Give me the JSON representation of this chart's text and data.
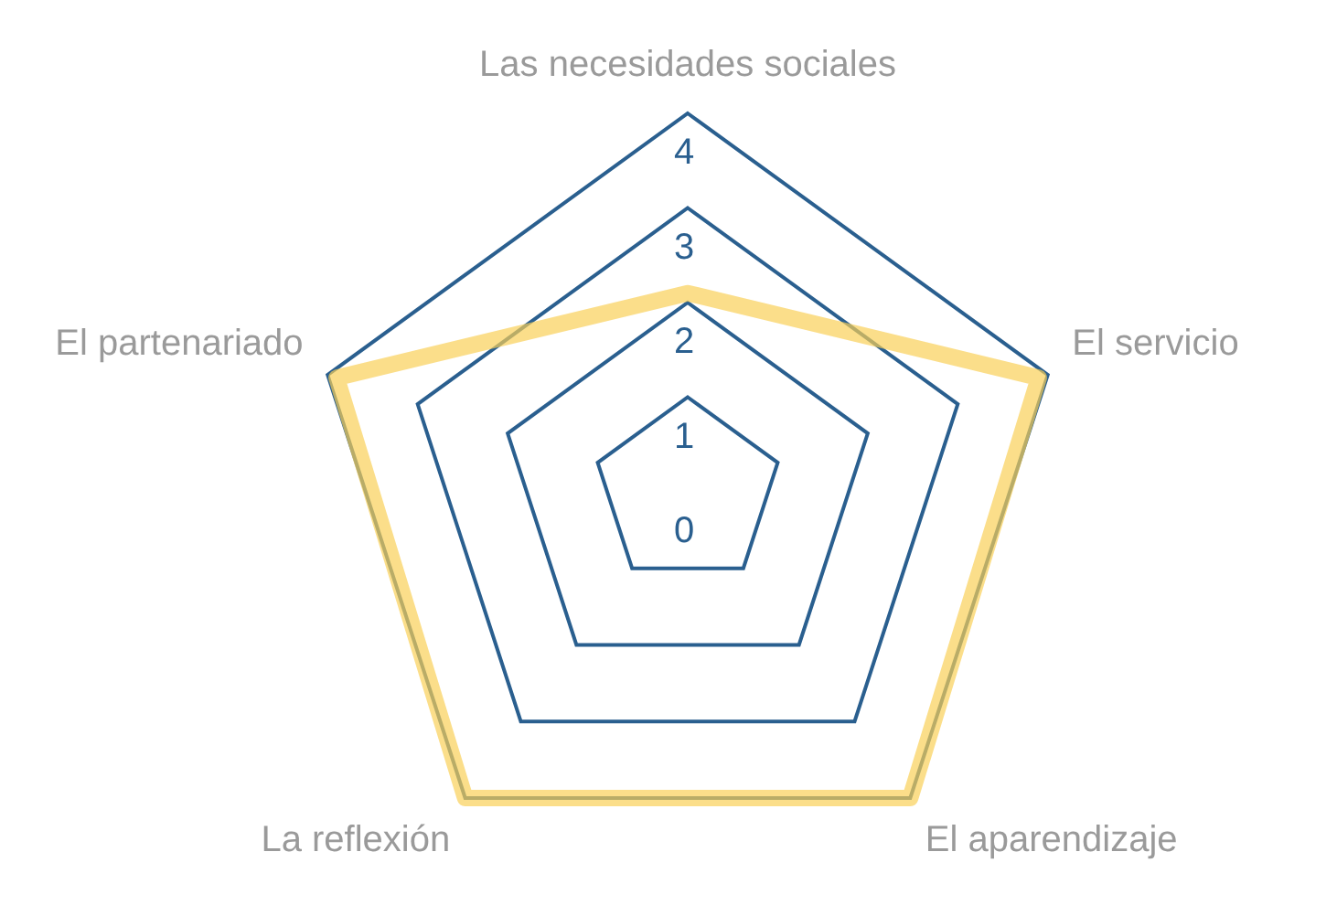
{
  "chart_data": {
    "type": "radar",
    "categories": [
      "Las necesidades sociales",
      "El servicio",
      "El aparendizaje",
      "La reflexión",
      "El partenariado"
    ],
    "series": [
      {
        "color": "#f9cf55",
        "values": [
          2.1,
          3.9,
          4,
          4,
          3.9
        ]
      }
    ],
    "ylim": [
      0,
      4
    ],
    "yticks": [
      0,
      1,
      2,
      3,
      4
    ],
    "grid": true,
    "legend": false,
    "marker": "none"
  }
}
